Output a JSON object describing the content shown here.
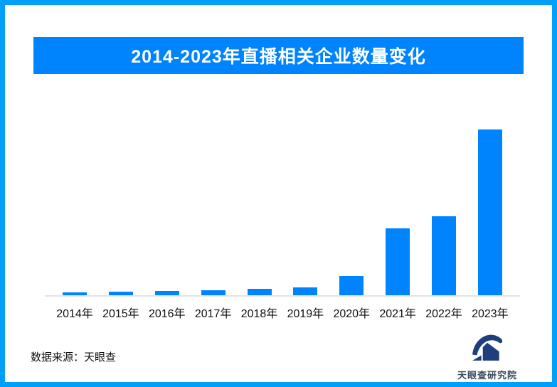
{
  "page": {
    "border_color": "#00a0fa",
    "background_color": "#ffffff"
  },
  "header": {
    "title": "2014-2023年直播相关企业数量变化",
    "banner_color": "#0084fe",
    "title_text_color": "#ffffff"
  },
  "chart_data": {
    "type": "bar",
    "title": "2014-2023年直播相关企业数量变化",
    "categories": [
      "2014年",
      "2015年",
      "2016年",
      "2017年",
      "2018年",
      "2019年",
      "2020年",
      "2021年",
      "2022年",
      "2023年"
    ],
    "values": [
      4,
      5,
      6,
      7,
      9,
      11,
      27,
      94,
      111,
      233
    ],
    "values_note": "no y-axis or data labels shown in image; values are relative bar heights read from pixels",
    "xlabel": "",
    "ylabel": "",
    "ylim": [
      0,
      240
    ],
    "grid": false,
    "legend": false,
    "bar_color": "#0084fe",
    "axis_line_color": "#e3e3e3"
  },
  "footer": {
    "source_label": "数据来源：天眼查",
    "logo_text": "天眼查研究院",
    "logo_color": "#1e3e7d"
  }
}
